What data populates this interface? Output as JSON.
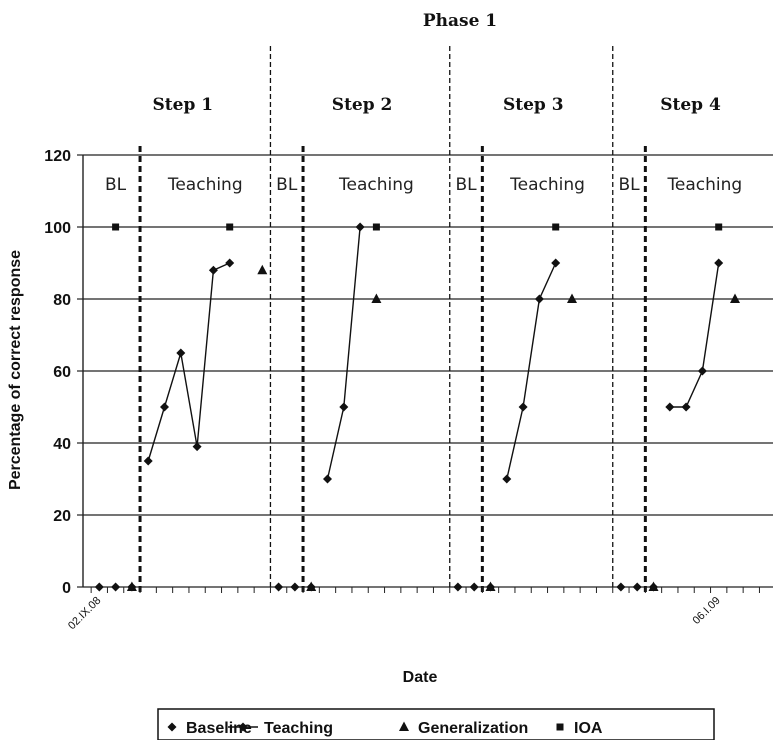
{
  "chart_data": {
    "type": "line",
    "title": "Phase 1",
    "xlabel": "Date",
    "ylabel": "Percentage of correct response",
    "ylim": [
      0,
      120
    ],
    "y_ticks": [
      "0",
      "20",
      "40",
      "60",
      "80",
      "100",
      "120"
    ],
    "x_tick_labels": [
      "02.IX.08",
      "06.I.09"
    ],
    "grid": "horizontal",
    "legend_position": "bottom",
    "steps": [
      {
        "label": "Step 1",
        "regions": [
          "BL",
          "Teaching"
        ]
      },
      {
        "label": "Step 2",
        "regions": [
          "BL",
          "Teaching"
        ]
      },
      {
        "label": "Step 3",
        "regions": [
          "BL",
          "Teaching"
        ]
      },
      {
        "label": "Step 4",
        "regions": [
          "BL",
          "Teaching"
        ]
      }
    ],
    "session_count": 39,
    "step_boundaries": [
      11.5,
      22.5,
      32.5
    ],
    "phase_change_lines": [
      3.5,
      13.5,
      24.5,
      34.5
    ],
    "series": [
      {
        "name": "Baseline",
        "marker": "diamond",
        "connected": false,
        "points": [
          [
            1,
            0
          ],
          [
            2,
            0
          ],
          [
            3,
            0
          ],
          [
            12,
            0
          ],
          [
            13,
            0
          ],
          [
            14,
            0
          ],
          [
            23,
            0
          ],
          [
            24,
            0
          ],
          [
            25,
            0
          ],
          [
            33,
            0
          ],
          [
            34,
            0
          ],
          [
            35,
            0
          ]
        ]
      },
      {
        "name": "Teaching",
        "marker": "diamond",
        "connected": true,
        "segments": [
          [
            [
              4,
              35
            ],
            [
              5,
              50
            ],
            [
              6,
              65
            ],
            [
              7,
              39
            ],
            [
              8,
              88
            ],
            [
              9,
              90
            ]
          ],
          [
            [
              15,
              30
            ],
            [
              16,
              50
            ],
            [
              17,
              100
            ]
          ],
          [
            [
              26,
              30
            ],
            [
              27,
              50
            ],
            [
              28,
              80
            ],
            [
              29,
              90
            ]
          ],
          [
            [
              36,
              50
            ],
            [
              37,
              50
            ],
            [
              38,
              60
            ],
            [
              39,
              90
            ]
          ]
        ]
      },
      {
        "name": "Generalization",
        "marker": "triangle",
        "connected": false,
        "points": [
          [
            3,
            0
          ],
          [
            11,
            88
          ],
          [
            14,
            0
          ],
          [
            18,
            80
          ],
          [
            25,
            0
          ],
          [
            30,
            80
          ],
          [
            35,
            0
          ],
          [
            40,
            80
          ]
        ]
      },
      {
        "name": "IOA",
        "marker": "square",
        "connected": false,
        "points": [
          [
            2,
            100
          ],
          [
            9,
            100
          ],
          [
            18,
            100
          ],
          [
            29,
            100
          ],
          [
            39,
            100
          ]
        ]
      }
    ]
  }
}
